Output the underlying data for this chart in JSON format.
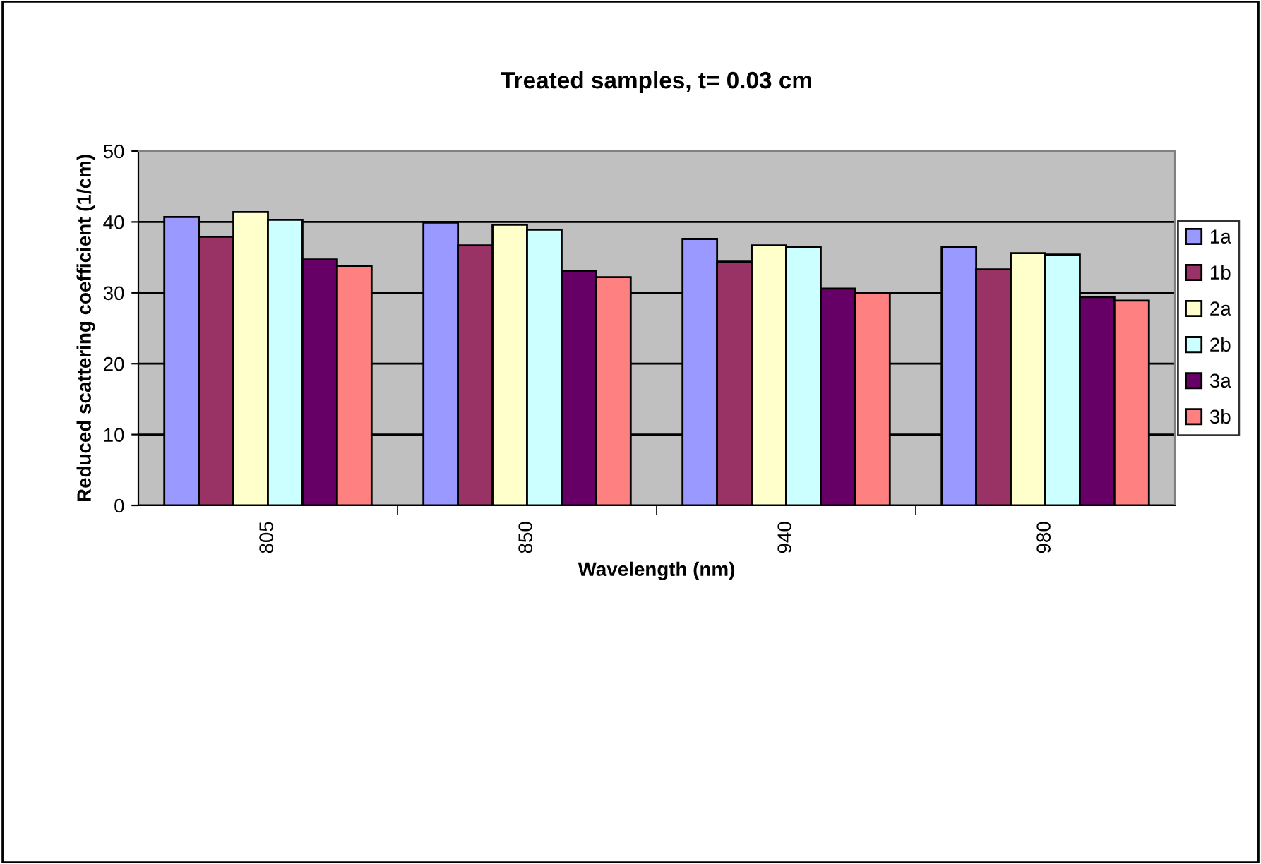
{
  "chart_data": {
    "type": "bar",
    "title": "Treated samples, t= 0.03 cm",
    "xlabel": "Wavelength (nm)",
    "ylabel": "Reduced scattering coefficient (1/cm)",
    "categories": [
      "805",
      "850",
      "940",
      "980"
    ],
    "series": [
      {
        "name": "1a",
        "color": "#9999ff",
        "values": [
          40.7,
          39.9,
          37.6,
          36.5
        ]
      },
      {
        "name": "1b",
        "color": "#993366",
        "values": [
          37.9,
          36.7,
          34.4,
          33.3
        ]
      },
      {
        "name": "2a",
        "color": "#ffffcc",
        "values": [
          41.4,
          39.6,
          36.7,
          35.6
        ]
      },
      {
        "name": "2b",
        "color": "#ccffff",
        "values": [
          40.3,
          38.9,
          36.5,
          35.4
        ]
      },
      {
        "name": "3a",
        "color": "#660066",
        "values": [
          34.7,
          33.1,
          30.6,
          29.4
        ]
      },
      {
        "name": "3b",
        "color": "#ff8080",
        "values": [
          33.8,
          32.2,
          30.0,
          28.9
        ]
      }
    ],
    "ylim": [
      0,
      50
    ],
    "yticks": [
      0,
      10,
      20,
      30,
      40,
      50
    ],
    "grid": "y",
    "legend": "right"
  }
}
